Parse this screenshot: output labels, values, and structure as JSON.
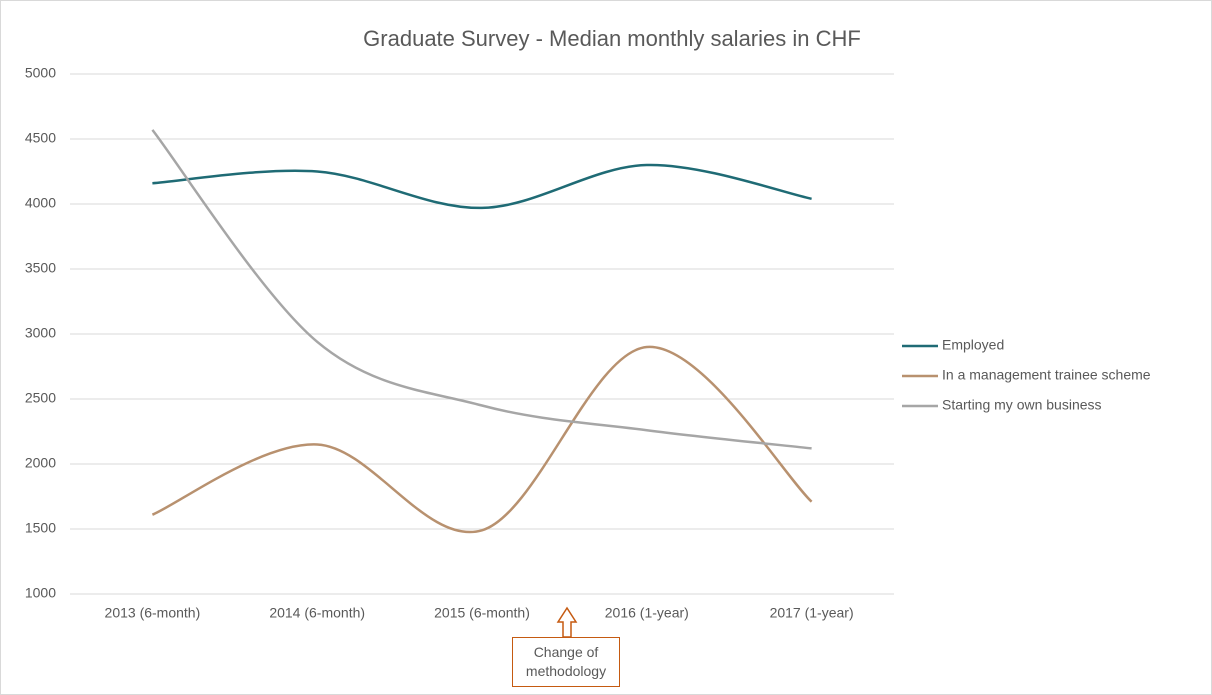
{
  "chart_data": {
    "type": "line",
    "title": "Graduate Survey - Median monthly salaries in CHF",
    "categories": [
      "2013 (6-month)",
      "2014 (6-month)",
      "2015 (6-month)",
      "2016 (1-year)",
      "2017 (1-year)"
    ],
    "series": [
      {
        "name": "Employed",
        "color": "#1f6b75",
        "values": [
          4160,
          4250,
          3970,
          4300,
          4040
        ]
      },
      {
        "name": "In a management trainee scheme",
        "color": "#b8916f",
        "values": [
          1610,
          2150,
          1490,
          2900,
          1710
        ]
      },
      {
        "name": "Starting my own business",
        "color": "#a6a6a6",
        "values": [
          4570,
          2940,
          2450,
          2260,
          2120
        ]
      }
    ],
    "ylim": [
      1000,
      5000
    ],
    "yticks": [
      1000,
      1500,
      2000,
      2500,
      3000,
      3500,
      4000,
      4500,
      5000
    ],
    "grid": true,
    "smooth": true,
    "legend": "right",
    "annotation": "Change of methodology"
  }
}
